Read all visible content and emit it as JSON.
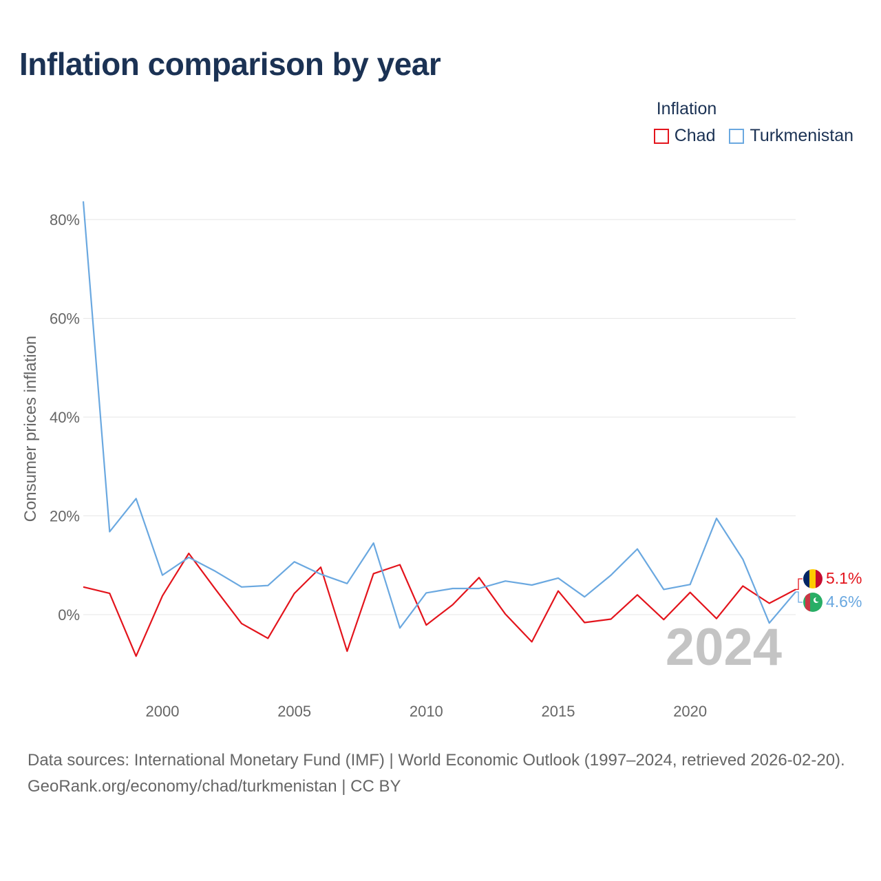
{
  "title": "Inflation comparison by year",
  "legend": {
    "title": "Inflation",
    "items": [
      {
        "label": "Chad",
        "color": "#e3141c"
      },
      {
        "label": "Turkmenistan",
        "color": "#6aa8e0"
      }
    ]
  },
  "chart_data": {
    "type": "line",
    "title": "Inflation comparison by year",
    "xlabel": "",
    "ylabel": "Consumer prices inflation",
    "x": [
      1997,
      1998,
      1999,
      2000,
      2001,
      2002,
      2003,
      2004,
      2005,
      2006,
      2007,
      2008,
      2009,
      2010,
      2011,
      2012,
      2013,
      2014,
      2015,
      2016,
      2017,
      2018,
      2019,
      2020,
      2021,
      2022,
      2023,
      2024
    ],
    "xticks": [
      2000,
      2005,
      2010,
      2015,
      2020
    ],
    "xtick_labels": [
      "2000",
      "2005",
      "2010",
      "2015",
      "2020"
    ],
    "yticks": [
      0,
      20,
      40,
      60,
      80
    ],
    "ytick_labels": [
      "0%",
      "20%",
      "40%",
      "60%",
      "80%"
    ],
    "xlim": [
      1997,
      2024
    ],
    "ylim": [
      -16,
      85
    ],
    "grid": true,
    "legend_position": "top-right",
    "series": [
      {
        "name": "Chad",
        "color": "#e3141c",
        "values": [
          5.6,
          4.3,
          -8.4,
          3.8,
          12.4,
          5.2,
          -1.8,
          -4.8,
          4.3,
          9.6,
          -7.4,
          8.3,
          10.1,
          -2.1,
          2.0,
          7.5,
          0.1,
          -5.5,
          4.8,
          -1.6,
          -0.9,
          4.0,
          -1.0,
          4.5,
          -0.8,
          5.8,
          2.3,
          5.1
        ],
        "end_label": "5.1%"
      },
      {
        "name": "Turkmenistan",
        "color": "#6aa8e0",
        "values": [
          83.7,
          16.8,
          23.5,
          8.0,
          11.6,
          8.8,
          5.6,
          5.9,
          10.7,
          8.2,
          6.3,
          14.5,
          -2.7,
          4.4,
          5.3,
          5.3,
          6.8,
          6.0,
          7.4,
          3.6,
          8.0,
          13.3,
          5.1,
          6.1,
          19.5,
          11.2,
          -1.7,
          4.6
        ],
        "end_label": "4.6%"
      }
    ],
    "watermark_year": "2024"
  },
  "footer": {
    "sources": "Data sources: International Monetary Fund (IMF) | World Economic Outlook (1997–2024, retrieved 2026-02-20).",
    "credit": "GeoRank.org/economy/chad/turkmenistan | CC BY"
  }
}
